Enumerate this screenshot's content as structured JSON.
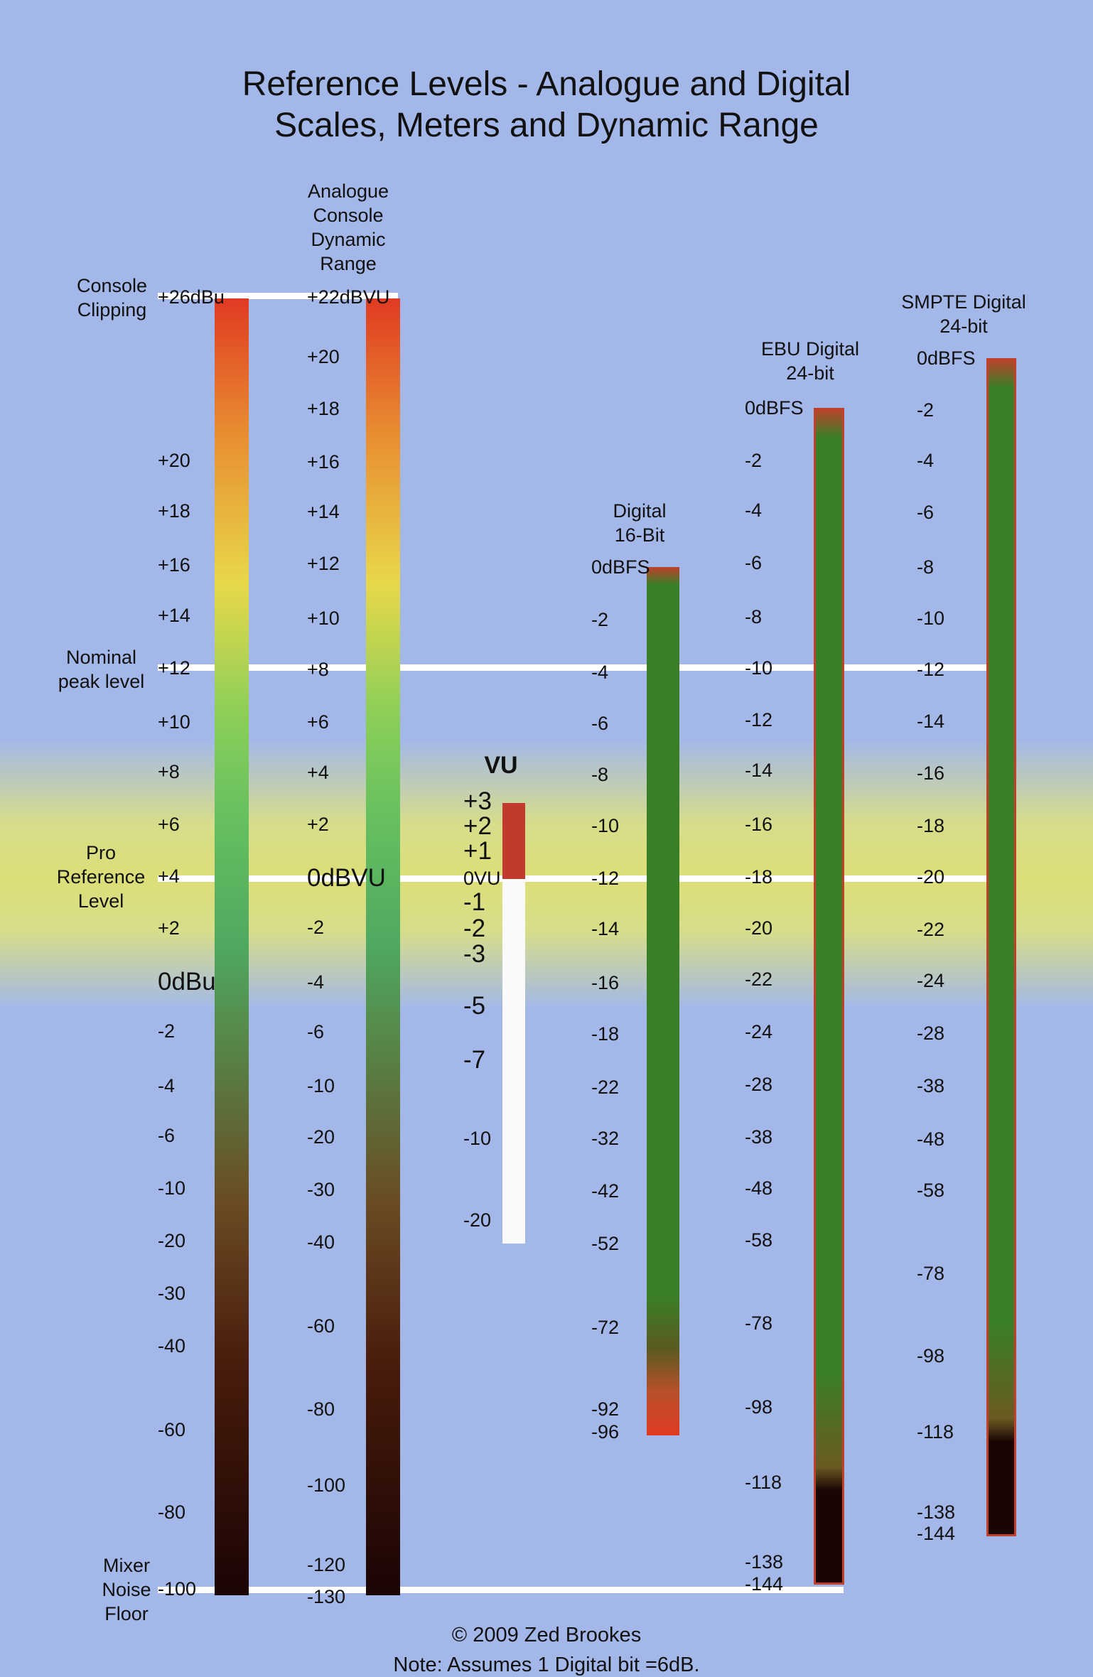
{
  "title": {
    "line1": "Reference Levels - Analogue and Digital",
    "line2": "Scales, Meters and Dynamic Range"
  },
  "side_labels": {
    "console_clipping": [
      "Console",
      "Clipping"
    ],
    "nominal_peak": [
      "Nominal",
      "peak level"
    ],
    "pro_reference": [
      "Pro",
      "Reference",
      "Level"
    ],
    "mixer_noise": [
      "Mixer",
      "Noise",
      "Floor"
    ]
  },
  "column_headers": {
    "analogue": [
      "Analogue",
      "Console",
      "Dynamic",
      "Range"
    ],
    "vu": "VU",
    "digital16": [
      "Digital",
      "16-Bit"
    ],
    "ebu": [
      "EBU Digital",
      "24-bit"
    ],
    "smpte": [
      "SMPTE Digital",
      "24-bit"
    ]
  },
  "scales": {
    "dbu": [
      "+26dBu",
      "+20",
      "+18",
      "+16",
      "+14",
      "+12",
      "+10",
      "+8",
      "+6",
      "+4",
      "+2",
      "0dBu",
      "-2",
      "-4",
      "-6",
      "-10",
      "-20",
      "-30",
      "-40",
      "-60",
      "-80",
      "-100"
    ],
    "dbvu": [
      "+22dBVU",
      "+20",
      "+18",
      "+16",
      "+14",
      "+12",
      "+10",
      "+8",
      "+6",
      "+4",
      "+2",
      "0dBVU",
      "-2",
      "-4",
      "-6",
      "-10",
      "-20",
      "-30",
      "-40",
      "-60",
      "-80",
      "-100",
      "-120",
      "-130"
    ],
    "vu": [
      "+3",
      "+2",
      "+1",
      "0VU",
      "-1",
      "-2",
      "-3",
      "-5",
      "-7",
      "-10",
      "-20"
    ],
    "d16": [
      "0dBFS",
      "-2",
      "-4",
      "-6",
      "-8",
      "-10",
      "-12",
      "-14",
      "-16",
      "-18",
      "-22",
      "-32",
      "-42",
      "-52",
      "-72",
      "-92",
      "-96"
    ],
    "ebu": [
      "0dBFS",
      "-2",
      "-4",
      "-6",
      "-8",
      "-10",
      "-12",
      "-14",
      "-16",
      "-18",
      "-20",
      "-22",
      "-24",
      "-28",
      "-38",
      "-48",
      "-58",
      "-78",
      "-98",
      "-118",
      "-138",
      "-144"
    ],
    "smpte": [
      "0dBFS",
      "-2",
      "-4",
      "-6",
      "-8",
      "-10",
      "-12",
      "-14",
      "-16",
      "-18",
      "-20",
      "-22",
      "-24",
      "-28",
      "-38",
      "-48",
      "-58",
      "-78",
      "-98",
      "-118",
      "-138",
      "-144"
    ]
  },
  "footer": {
    "copyright": "© 2009 Zed Brookes",
    "note": "Note: Assumes 1 Digital bit =6dB."
  },
  "colors": {
    "background": "#a3b8e8",
    "reference_band": "#dcde78",
    "reference_line": "#ffffff",
    "meter_red": "#e03a22",
    "meter_yellow": "#e8d84a",
    "meter_green": "#66c060",
    "meter_dark": "#1a0404",
    "digital_green": "#3a7f28",
    "vu_red": "#c03a2e",
    "vu_white": "#fafafa"
  }
}
